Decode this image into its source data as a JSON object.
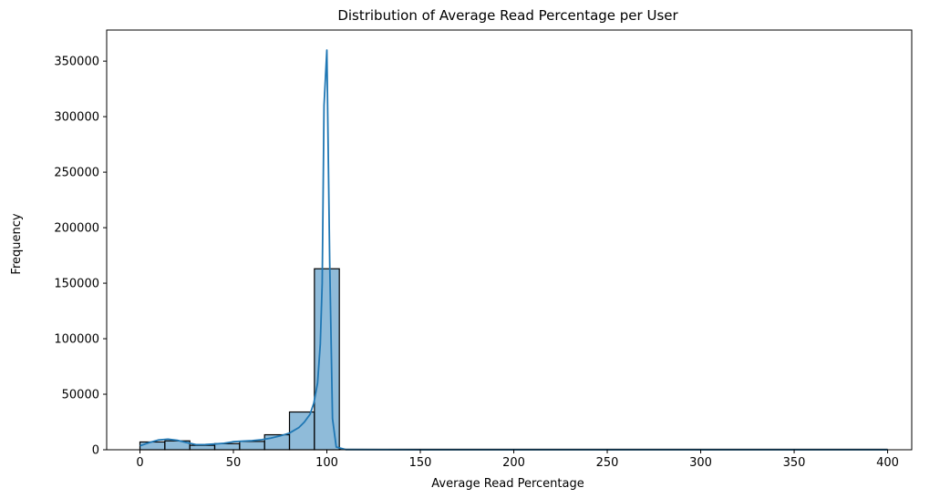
{
  "chart_data": {
    "type": "bar",
    "title": "Distribution of Average Read Percentage per User",
    "xlabel": "Average Read Percentage",
    "ylabel": "Frequency",
    "xlim": [
      -17.8,
      412.9
    ],
    "ylim": [
      0,
      378000
    ],
    "xticks": [
      0,
      50,
      100,
      150,
      200,
      250,
      300,
      350,
      400
    ],
    "yticks": [
      0,
      50000,
      100000,
      150000,
      200000,
      250000,
      300000,
      350000
    ],
    "grid": false,
    "bar_color": "#1f77b4",
    "bar_alpha": 0.5,
    "bar_edge_color": "#000000",
    "bins": [
      {
        "x0": 0,
        "x1": 13.33,
        "count": 7000
      },
      {
        "x0": 13.33,
        "x1": 26.67,
        "count": 8000
      },
      {
        "x0": 26.67,
        "x1": 40,
        "count": 4000
      },
      {
        "x0": 40,
        "x1": 53.33,
        "count": 5500
      },
      {
        "x0": 53.33,
        "x1": 66.67,
        "count": 7500
      },
      {
        "x0": 66.67,
        "x1": 80,
        "count": 13500
      },
      {
        "x0": 80,
        "x1": 93.33,
        "count": 34000
      },
      {
        "x0": 93.33,
        "x1": 106.67,
        "count": 163000
      },
      {
        "x0": 106.67,
        "x1": 400,
        "count": 0
      }
    ],
    "kde": {
      "color": "#1f77b4",
      "points": [
        [
          0,
          3500
        ],
        [
          5,
          6500
        ],
        [
          10,
          8800
        ],
        [
          15,
          9500
        ],
        [
          20,
          8500
        ],
        [
          25,
          6500
        ],
        [
          30,
          4600
        ],
        [
          35,
          4700
        ],
        [
          40,
          5200
        ],
        [
          45,
          5800
        ],
        [
          50,
          7200
        ],
        [
          55,
          7800
        ],
        [
          60,
          8200
        ],
        [
          65,
          9000
        ],
        [
          70,
          10500
        ],
        [
          75,
          12500
        ],
        [
          80,
          15000
        ],
        [
          85,
          20000
        ],
        [
          88,
          25000
        ],
        [
          91,
          32000
        ],
        [
          93,
          42000
        ],
        [
          95,
          60000
        ],
        [
          96.5,
          95000
        ],
        [
          97.5,
          150000
        ],
        [
          98.5,
          310000
        ],
        [
          100,
          360000
        ],
        [
          101.5,
          170000
        ],
        [
          103,
          28000
        ],
        [
          105,
          2500
        ],
        [
          110,
          200
        ],
        [
          150,
          0
        ],
        [
          200,
          0
        ],
        [
          300,
          0
        ],
        [
          400,
          0
        ]
      ]
    }
  }
}
